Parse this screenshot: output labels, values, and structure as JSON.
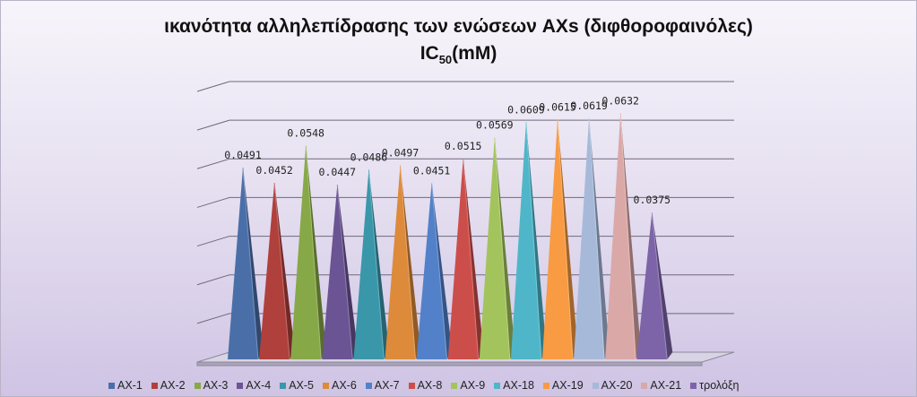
{
  "chart_data": {
    "type": "bar",
    "variant": "3d-pyramid",
    "title": "ικανότητα αλληλεπίδρασης των ενώσεων AXs (διφθοροφαινόλες)",
    "subtitle_prefix": "IC",
    "subtitle_sub": "50",
    "subtitle_suffix": "(mM)",
    "ylim": [
      0,
      0.07
    ],
    "grid": true,
    "legend_position": "bottom",
    "show_data_labels": true,
    "series": [
      {
        "name": "AX-1",
        "value": 0.0491,
        "label": "0.0491",
        "color": "#4a6fa8"
      },
      {
        "name": "AX-2",
        "value": 0.0452,
        "label": "0.0452",
        "color": "#b0403c"
      },
      {
        "name": "AX-3",
        "value": 0.0548,
        "label": "0.0548",
        "color": "#87a847"
      },
      {
        "name": "AX-4",
        "value": 0.0447,
        "label": "0.0447",
        "color": "#6b5493"
      },
      {
        "name": "AX-5",
        "value": 0.0486,
        "label": "0.0486",
        "color": "#3a97aa"
      },
      {
        "name": "AX-6",
        "value": 0.0497,
        "label": "0.0497",
        "color": "#dd8a3a"
      },
      {
        "name": "AX-7",
        "value": 0.0451,
        "label": "0.0451",
        "color": "#5281c9"
      },
      {
        "name": "AX-8",
        "value": 0.0515,
        "label": "0.0515",
        "color": "#cc4e4a"
      },
      {
        "name": "AX-9",
        "value": 0.0569,
        "label": "0.0569",
        "color": "#a3c45c"
      },
      {
        "name": "AX-18",
        "value": 0.0609,
        "label": "0.0609",
        "color": "#4fb6c9"
      },
      {
        "name": "AX-19",
        "value": 0.0615,
        "label": "0.0615",
        "color": "#f89b42"
      },
      {
        "name": "AX-20",
        "value": 0.0619,
        "label": "0.0619",
        "color": "#a7b9d9"
      },
      {
        "name": "AX-21",
        "value": 0.0632,
        "label": "0.0632",
        "color": "#dba8a8"
      },
      {
        "name": "τρολόξη",
        "value": 0.0375,
        "label": "0.0375",
        "color": "#7d64a8"
      }
    ]
  }
}
